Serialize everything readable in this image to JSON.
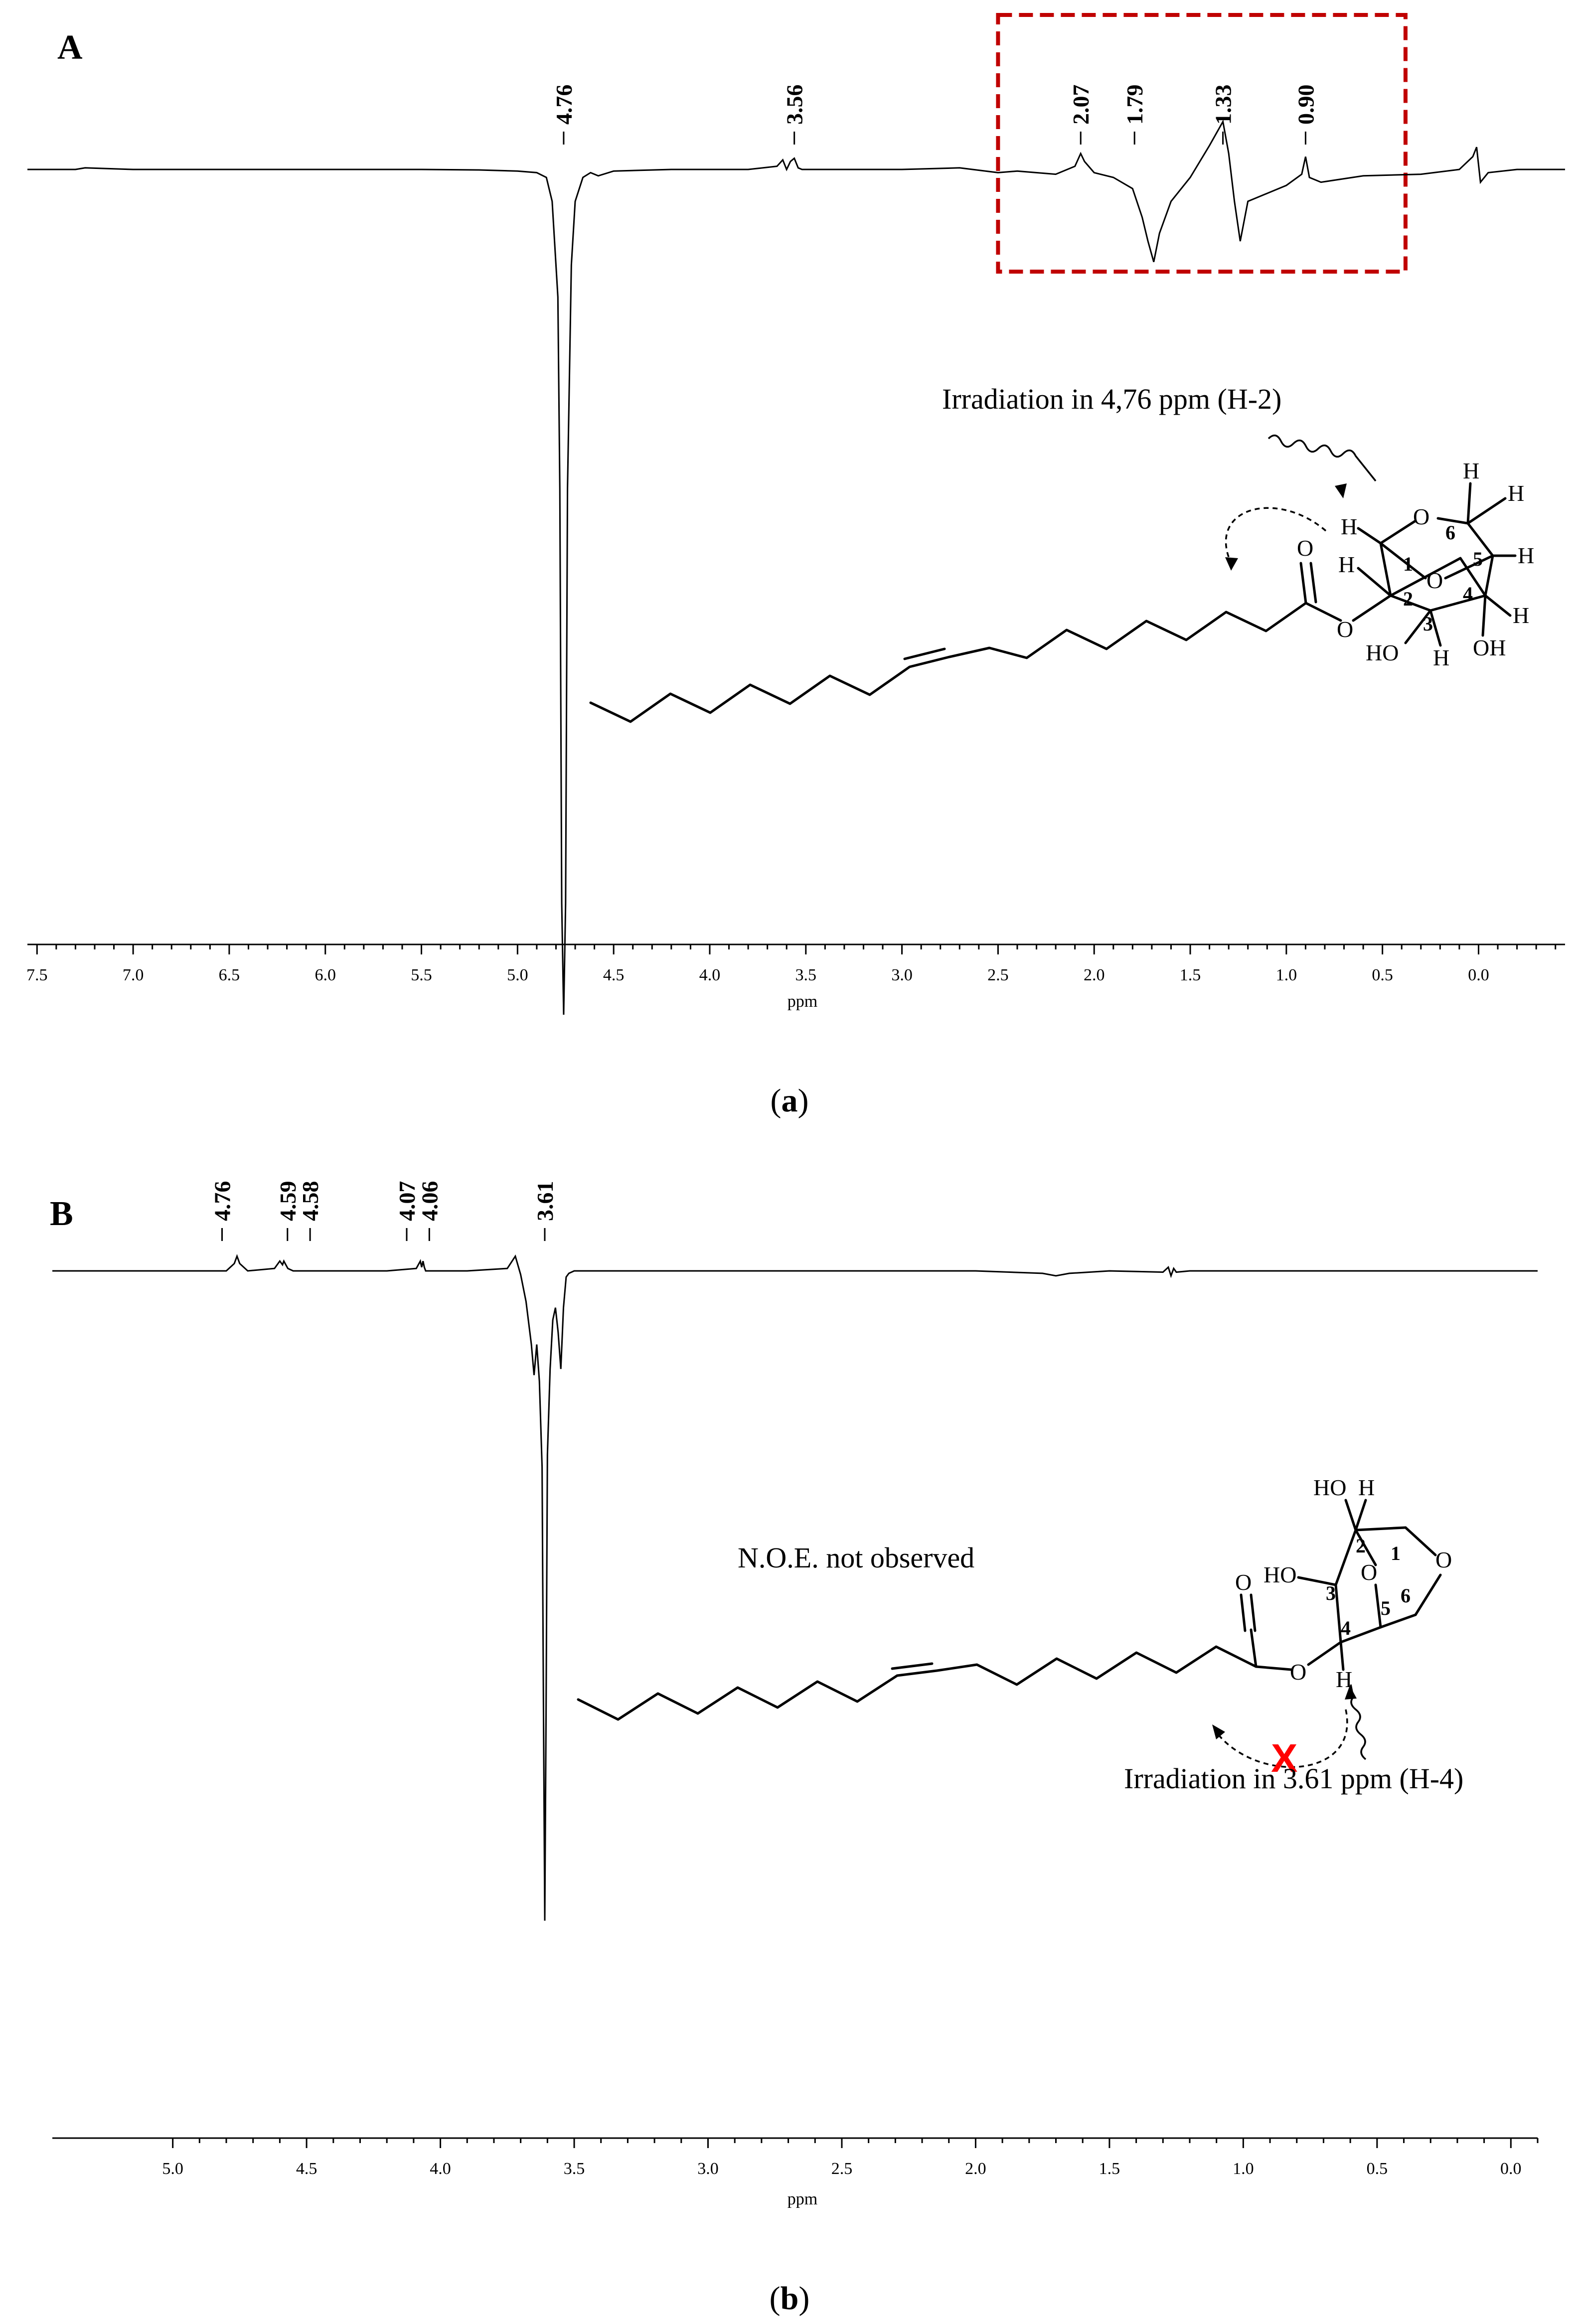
{
  "chart_data": [
    {
      "type": "line",
      "panel_letter": "A",
      "caption_prefix": "(",
      "caption_letter": "a",
      "caption_suffix": ")",
      "xlabel": "ppm",
      "x_reversed": true,
      "xlim": [
        7.55,
        -0.45
      ],
      "xticks": [
        "7.5",
        "7.0",
        "6.5",
        "6.0",
        "5.5",
        "5.0",
        "4.5",
        "4.0",
        "3.5",
        "3.0",
        "2.5",
        "2.0",
        "1.5",
        "1.0",
        "0.5",
        "0.0"
      ],
      "peak_labels": [
        "4.76",
        "3.56",
        "2.07",
        "1.79",
        "1.33",
        "0.90"
      ],
      "annotation": "Irradiation in 4,76 ppm (H-2)",
      "highlight_range_ppm": [
        2.5,
        0.38
      ],
      "series": [
        {
          "x": [
            7.55,
            7.3,
            7.25,
            7.0,
            6.5,
            6.0,
            5.5,
            5.2,
            5.0,
            4.9,
            4.85,
            4.82,
            4.79,
            4.78,
            4.77,
            4.76,
            4.75,
            4.74,
            4.72,
            4.7,
            4.66,
            4.62,
            4.58,
            4.5,
            4.2,
            3.8,
            3.65,
            3.62,
            3.6,
            3.58,
            3.56,
            3.54,
            3.52,
            3.4,
            3.0,
            2.7,
            2.5,
            2.4,
            2.2,
            2.1,
            2.07,
            2.05,
            2.0,
            1.9,
            1.8,
            1.75,
            1.72,
            1.69,
            1.66,
            1.6,
            1.5,
            1.4,
            1.33,
            1.3,
            1.27,
            1.24,
            1.2,
            1.1,
            1.0,
            0.92,
            0.9,
            0.88,
            0.82,
            0.6,
            0.3,
            0.1,
            0.03,
            0.01,
            -0.01,
            -0.05,
            -0.2,
            -0.45
          ],
          "y": [
            0,
            0,
            0.01,
            0,
            0,
            0,
            0,
            -0.003,
            -0.01,
            -0.02,
            -0.05,
            -0.2,
            -0.8,
            -2.0,
            -4.6,
            -5.3,
            -4.6,
            -2.0,
            -0.6,
            -0.2,
            -0.05,
            -0.02,
            -0.04,
            -0.01,
            0,
            0,
            0.02,
            0.06,
            0,
            0.05,
            0.07,
            0.01,
            0,
            0,
            0,
            0.01,
            -0.02,
            -0.01,
            -0.03,
            0.02,
            0.1,
            0.05,
            -0.02,
            -0.05,
            -0.12,
            -0.3,
            -0.45,
            -0.58,
            -0.4,
            -0.2,
            -0.05,
            0.15,
            0.3,
            0.1,
            -0.2,
            -0.45,
            -0.2,
            -0.15,
            -0.1,
            -0.03,
            0.08,
            -0.05,
            -0.08,
            -0.04,
            -0.03,
            0,
            0.08,
            0.14,
            -0.08,
            -0.02,
            0,
            0
          ]
        }
      ],
      "ylim": [
        -5.6,
        0.6
      ]
    },
    {
      "type": "line",
      "panel_letter": "B",
      "caption_prefix": "(",
      "caption_letter": "b",
      "caption_suffix": ")",
      "xlabel": "ppm",
      "x_reversed": true,
      "xlim": [
        5.45,
        -0.1
      ],
      "xticks": [
        "5.0",
        "4.5",
        "4.0",
        "3.5",
        "3.0",
        "2.5",
        "2.0",
        "1.5",
        "1.0",
        "0.5",
        "0.0"
      ],
      "peak_labels": [
        "4.76",
        "4.59",
        "4.58",
        "4.07",
        "4.06",
        "3.61"
      ],
      "annotation": "N.O.E. not observed",
      "annotation2": "Irradiation in 3.61 ppm (H-4)",
      "x_mark": "X",
      "series": [
        {
          "x": [
            5.45,
            5.0,
            4.8,
            4.77,
            4.76,
            4.75,
            4.72,
            4.62,
            4.6,
            4.59,
            4.585,
            4.58,
            4.57,
            4.55,
            4.2,
            4.09,
            4.075,
            4.07,
            4.065,
            4.06,
            4.055,
            4.04,
            3.9,
            3.75,
            3.72,
            3.7,
            3.68,
            3.66,
            3.65,
            3.64,
            3.63,
            3.62,
            3.615,
            3.61,
            3.605,
            3.6,
            3.59,
            3.58,
            3.57,
            3.56,
            3.55,
            3.54,
            3.53,
            3.52,
            3.5,
            3.45,
            3.3,
            2.0,
            1.75,
            1.7,
            1.65,
            1.5,
            1.3,
            1.28,
            1.27,
            1.26,
            1.25,
            1.2,
            1.0,
            0.5,
            0.0,
            -0.1
          ],
          "y": [
            0,
            0,
            0,
            0.06,
            0.12,
            0.06,
            0,
            0.02,
            0.08,
            0.05,
            0.08,
            0.06,
            0.02,
            0,
            0,
            0.02,
            0.08,
            0.03,
            0.08,
            0.03,
            0,
            0,
            0,
            0.02,
            0.12,
            -0.03,
            -0.25,
            -0.6,
            -0.85,
            -0.6,
            -0.9,
            -1.6,
            -3.5,
            -5.3,
            -3.6,
            -1.5,
            -0.8,
            -0.4,
            -0.3,
            -0.5,
            -0.8,
            -0.3,
            -0.05,
            -0.02,
            0,
            0,
            0,
            0,
            -0.02,
            -0.04,
            -0.02,
            0,
            -0.01,
            0.03,
            -0.04,
            0.02,
            -0.01,
            0,
            0,
            0,
            0,
            0
          ]
        }
      ],
      "ylim": [
        -5.6,
        0.6
      ]
    }
  ],
  "molecule": {
    "atom_h": "H",
    "atom_o": "O",
    "group_ho": "HO",
    "group_oh": "OH",
    "ring_numbers_a": [
      "1",
      "2",
      "3",
      "4",
      "5",
      "6"
    ],
    "ring_numbers_b": [
      "1",
      "2",
      "3",
      "4",
      "5",
      "6"
    ]
  }
}
